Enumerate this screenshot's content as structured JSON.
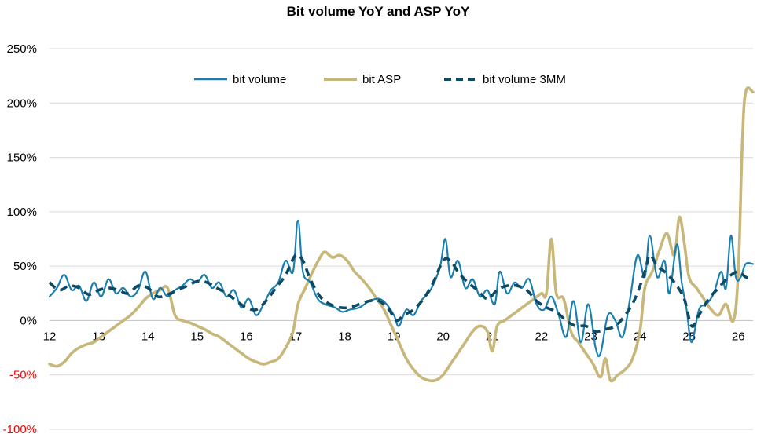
{
  "chart_data": {
    "type": "line",
    "title": "Bit volume YoY and ASP YoY",
    "xlabel": "",
    "ylabel": "",
    "xlim": [
      2012,
      2026.3
    ],
    "ylim": [
      -100,
      250
    ],
    "y_ticks": [
      {
        "value": 250,
        "label": "250%"
      },
      {
        "value": 200,
        "label": "200%"
      },
      {
        "value": 150,
        "label": "150%"
      },
      {
        "value": 100,
        "label": "100%"
      },
      {
        "value": 50,
        "label": "50%"
      },
      {
        "value": 0,
        "label": "0%"
      },
      {
        "value": -50,
        "label": "-50%"
      },
      {
        "value": -100,
        "label": "-100%"
      }
    ],
    "x_ticks": [
      {
        "value": 2012,
        "label": "12"
      },
      {
        "value": 2013,
        "label": "13"
      },
      {
        "value": 2014,
        "label": "14"
      },
      {
        "value": 2015,
        "label": "15"
      },
      {
        "value": 2016,
        "label": "16"
      },
      {
        "value": 2017,
        "label": "17"
      },
      {
        "value": 2018,
        "label": "18"
      },
      {
        "value": 2019,
        "label": "19"
      },
      {
        "value": 2020,
        "label": "20"
      },
      {
        "value": 2021,
        "label": "21"
      },
      {
        "value": 2022,
        "label": "22"
      },
      {
        "value": 2023,
        "label": "23"
      },
      {
        "value": 2024,
        "label": "24"
      },
      {
        "value": 2025,
        "label": "25"
      },
      {
        "value": 2026,
        "label": "26"
      }
    ],
    "negative_tick_color": "#ff0000",
    "grid": "horizontal",
    "legend_position": "top",
    "series": [
      {
        "name": "bit volume",
        "color": "#1a7fae",
        "style": "solid",
        "points": [
          [
            2012.0,
            22
          ],
          [
            2012.15,
            30
          ],
          [
            2012.3,
            42
          ],
          [
            2012.45,
            28
          ],
          [
            2012.6,
            32
          ],
          [
            2012.75,
            18
          ],
          [
            2012.9,
            35
          ],
          [
            2013.05,
            22
          ],
          [
            2013.2,
            38
          ],
          [
            2013.35,
            25
          ],
          [
            2013.5,
            30
          ],
          [
            2013.65,
            22
          ],
          [
            2013.8,
            28
          ],
          [
            2013.95,
            45
          ],
          [
            2014.1,
            20
          ],
          [
            2014.25,
            30
          ],
          [
            2014.4,
            22
          ],
          [
            2014.55,
            28
          ],
          [
            2014.7,
            32
          ],
          [
            2014.85,
            38
          ],
          [
            2015.0,
            35
          ],
          [
            2015.15,
            42
          ],
          [
            2015.3,
            30
          ],
          [
            2015.45,
            35
          ],
          [
            2015.6,
            22
          ],
          [
            2015.75,
            28
          ],
          [
            2015.9,
            12
          ],
          [
            2016.05,
            20
          ],
          [
            2016.2,
            5
          ],
          [
            2016.35,
            15
          ],
          [
            2016.5,
            28
          ],
          [
            2016.65,
            35
          ],
          [
            2016.8,
            55
          ],
          [
            2016.95,
            45
          ],
          [
            2017.05,
            92
          ],
          [
            2017.15,
            45
          ],
          [
            2017.3,
            35
          ],
          [
            2017.45,
            20
          ],
          [
            2017.6,
            15
          ],
          [
            2017.8,
            12
          ],
          [
            2017.95,
            8
          ],
          [
            2018.1,
            10
          ],
          [
            2018.3,
            12
          ],
          [
            2018.5,
            18
          ],
          [
            2018.7,
            20
          ],
          [
            2018.85,
            15
          ],
          [
            2019.0,
            5
          ],
          [
            2019.1,
            -5
          ],
          [
            2019.25,
            10
          ],
          [
            2019.4,
            5
          ],
          [
            2019.55,
            18
          ],
          [
            2019.7,
            25
          ],
          [
            2019.85,
            38
          ],
          [
            2019.95,
            52
          ],
          [
            2020.05,
            75
          ],
          [
            2020.15,
            40
          ],
          [
            2020.3,
            55
          ],
          [
            2020.45,
            30
          ],
          [
            2020.6,
            38
          ],
          [
            2020.75,
            22
          ],
          [
            2020.9,
            28
          ],
          [
            2021.05,
            15
          ],
          [
            2021.15,
            45
          ],
          [
            2021.3,
            25
          ],
          [
            2021.45,
            35
          ],
          [
            2021.6,
            30
          ],
          [
            2021.75,
            38
          ],
          [
            2021.9,
            15
          ],
          [
            2022.05,
            10
          ],
          [
            2022.2,
            22
          ],
          [
            2022.35,
            5
          ],
          [
            2022.5,
            -15
          ],
          [
            2022.65,
            18
          ],
          [
            2022.8,
            -20
          ],
          [
            2022.95,
            15
          ],
          [
            2023.1,
            -25
          ],
          [
            2023.2,
            -30
          ],
          [
            2023.35,
            5
          ],
          [
            2023.5,
            0
          ],
          [
            2023.65,
            -15
          ],
          [
            2023.8,
            20
          ],
          [
            2023.95,
            60
          ],
          [
            2024.1,
            40
          ],
          [
            2024.2,
            78
          ],
          [
            2024.35,
            40
          ],
          [
            2024.5,
            55
          ],
          [
            2024.6,
            25
          ],
          [
            2024.75,
            70
          ],
          [
            2024.85,
            35
          ],
          [
            2024.95,
            10
          ],
          [
            2025.05,
            -20
          ],
          [
            2025.2,
            10
          ],
          [
            2025.35,
            15
          ],
          [
            2025.5,
            25
          ],
          [
            2025.65,
            45
          ],
          [
            2025.75,
            30
          ],
          [
            2025.85,
            78
          ],
          [
            2025.95,
            40
          ],
          [
            2026.05,
            40
          ],
          [
            2026.15,
            52
          ],
          [
            2026.3,
            52
          ]
        ]
      },
      {
        "name": "bit ASP",
        "color": "#c8b77a",
        "style": "solid",
        "points": [
          [
            2012.0,
            -40
          ],
          [
            2012.15,
            -42
          ],
          [
            2012.3,
            -38
          ],
          [
            2012.45,
            -30
          ],
          [
            2012.6,
            -25
          ],
          [
            2012.75,
            -22
          ],
          [
            2012.9,
            -20
          ],
          [
            2013.05,
            -15
          ],
          [
            2013.2,
            -10
          ],
          [
            2013.35,
            -5
          ],
          [
            2013.5,
            0
          ],
          [
            2013.65,
            5
          ],
          [
            2013.8,
            12
          ],
          [
            2013.95,
            20
          ],
          [
            2014.1,
            25
          ],
          [
            2014.25,
            28
          ],
          [
            2014.4,
            30
          ],
          [
            2014.55,
            5
          ],
          [
            2014.7,
            0
          ],
          [
            2014.85,
            -2
          ],
          [
            2015.0,
            -5
          ],
          [
            2015.15,
            -8
          ],
          [
            2015.3,
            -12
          ],
          [
            2015.45,
            -15
          ],
          [
            2015.6,
            -20
          ],
          [
            2015.75,
            -25
          ],
          [
            2015.9,
            -30
          ],
          [
            2016.05,
            -35
          ],
          [
            2016.2,
            -38
          ],
          [
            2016.35,
            -40
          ],
          [
            2016.5,
            -38
          ],
          [
            2016.65,
            -35
          ],
          [
            2016.8,
            -25
          ],
          [
            2016.95,
            -10
          ],
          [
            2017.05,
            15
          ],
          [
            2017.2,
            30
          ],
          [
            2017.35,
            45
          ],
          [
            2017.5,
            58
          ],
          [
            2017.6,
            63
          ],
          [
            2017.75,
            58
          ],
          [
            2017.9,
            60
          ],
          [
            2018.05,
            55
          ],
          [
            2018.2,
            45
          ],
          [
            2018.35,
            38
          ],
          [
            2018.5,
            30
          ],
          [
            2018.65,
            20
          ],
          [
            2018.8,
            10
          ],
          [
            2018.95,
            -5
          ],
          [
            2019.1,
            -20
          ],
          [
            2019.25,
            -35
          ],
          [
            2019.4,
            -45
          ],
          [
            2019.55,
            -52
          ],
          [
            2019.7,
            -55
          ],
          [
            2019.85,
            -55
          ],
          [
            2020.0,
            -50
          ],
          [
            2020.15,
            -40
          ],
          [
            2020.3,
            -30
          ],
          [
            2020.45,
            -20
          ],
          [
            2020.6,
            -10
          ],
          [
            2020.75,
            -5
          ],
          [
            2020.9,
            -10
          ],
          [
            2021.0,
            -28
          ],
          [
            2021.1,
            -5
          ],
          [
            2021.25,
            0
          ],
          [
            2021.4,
            5
          ],
          [
            2021.55,
            10
          ],
          [
            2021.7,
            15
          ],
          [
            2021.85,
            20
          ],
          [
            2022.0,
            25
          ],
          [
            2022.1,
            25
          ],
          [
            2022.2,
            75
          ],
          [
            2022.3,
            25
          ],
          [
            2022.45,
            20
          ],
          [
            2022.6,
            -10
          ],
          [
            2022.75,
            -20
          ],
          [
            2022.9,
            -30
          ],
          [
            2023.05,
            -40
          ],
          [
            2023.2,
            -52
          ],
          [
            2023.3,
            -35
          ],
          [
            2023.4,
            -55
          ],
          [
            2023.55,
            -50
          ],
          [
            2023.7,
            -45
          ],
          [
            2023.85,
            -35
          ],
          [
            2024.0,
            -10
          ],
          [
            2024.1,
            30
          ],
          [
            2024.25,
            45
          ],
          [
            2024.4,
            65
          ],
          [
            2024.55,
            80
          ],
          [
            2024.7,
            60
          ],
          [
            2024.8,
            95
          ],
          [
            2024.9,
            72
          ],
          [
            2025.0,
            40
          ],
          [
            2025.15,
            30
          ],
          [
            2025.3,
            20
          ],
          [
            2025.45,
            10
          ],
          [
            2025.6,
            5
          ],
          [
            2025.75,
            15
          ],
          [
            2025.9,
            0
          ],
          [
            2026.0,
            45
          ],
          [
            2026.08,
            160
          ],
          [
            2026.15,
            210
          ],
          [
            2026.3,
            210
          ]
        ]
      },
      {
        "name": "bit volume 3MM",
        "color": "#0d4a63",
        "style": "dashed",
        "points": [
          [
            2012.0,
            35
          ],
          [
            2012.2,
            28
          ],
          [
            2012.4,
            32
          ],
          [
            2012.6,
            30
          ],
          [
            2012.8,
            24
          ],
          [
            2013.0,
            28
          ],
          [
            2013.2,
            30
          ],
          [
            2013.4,
            28
          ],
          [
            2013.6,
            25
          ],
          [
            2013.8,
            32
          ],
          [
            2014.0,
            30
          ],
          [
            2014.2,
            22
          ],
          [
            2014.4,
            24
          ],
          [
            2014.6,
            28
          ],
          [
            2014.8,
            32
          ],
          [
            2015.0,
            36
          ],
          [
            2015.2,
            35
          ],
          [
            2015.4,
            30
          ],
          [
            2015.6,
            25
          ],
          [
            2015.8,
            18
          ],
          [
            2016.0,
            12
          ],
          [
            2016.2,
            10
          ],
          [
            2016.4,
            18
          ],
          [
            2016.6,
            30
          ],
          [
            2016.8,
            42
          ],
          [
            2017.0,
            60
          ],
          [
            2017.15,
            55
          ],
          [
            2017.3,
            38
          ],
          [
            2017.5,
            22
          ],
          [
            2017.7,
            15
          ],
          [
            2017.9,
            12
          ],
          [
            2018.1,
            12
          ],
          [
            2018.3,
            15
          ],
          [
            2018.5,
            18
          ],
          [
            2018.7,
            18
          ],
          [
            2018.9,
            10
          ],
          [
            2019.05,
            0
          ],
          [
            2019.2,
            5
          ],
          [
            2019.4,
            10
          ],
          [
            2019.6,
            20
          ],
          [
            2019.8,
            35
          ],
          [
            2020.0,
            55
          ],
          [
            2020.15,
            55
          ],
          [
            2020.3,
            45
          ],
          [
            2020.5,
            35
          ],
          [
            2020.7,
            28
          ],
          [
            2020.9,
            20
          ],
          [
            2021.1,
            28
          ],
          [
            2021.3,
            32
          ],
          [
            2021.5,
            32
          ],
          [
            2021.7,
            28
          ],
          [
            2021.9,
            18
          ],
          [
            2022.1,
            12
          ],
          [
            2022.3,
            8
          ],
          [
            2022.5,
            0
          ],
          [
            2022.7,
            -5
          ],
          [
            2022.9,
            -5
          ],
          [
            2023.1,
            -10
          ],
          [
            2023.3,
            -8
          ],
          [
            2023.5,
            -5
          ],
          [
            2023.7,
            5
          ],
          [
            2023.9,
            20
          ],
          [
            2024.1,
            45
          ],
          [
            2024.2,
            60
          ],
          [
            2024.35,
            50
          ],
          [
            2024.5,
            45
          ],
          [
            2024.7,
            35
          ],
          [
            2024.9,
            20
          ],
          [
            2025.05,
            -5
          ],
          [
            2025.2,
            5
          ],
          [
            2025.4,
            20
          ],
          [
            2025.6,
            30
          ],
          [
            2025.8,
            40
          ],
          [
            2026.0,
            45
          ],
          [
            2026.15,
            40
          ],
          [
            2026.3,
            38
          ]
        ]
      }
    ]
  }
}
